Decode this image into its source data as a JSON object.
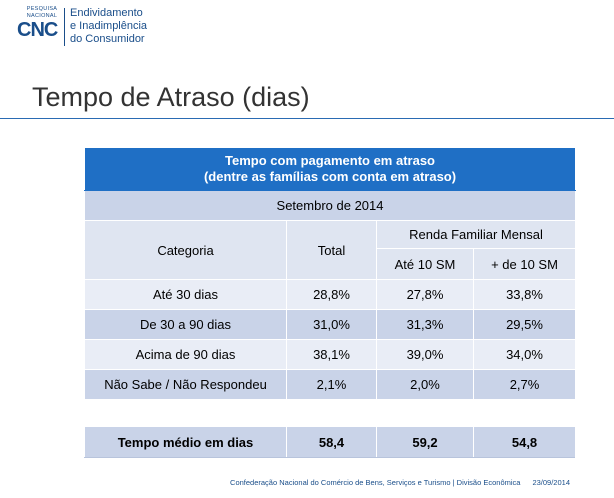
{
  "logo": {
    "small_line1": "PESQUISA",
    "small_line2": "NACIONAL",
    "acronym": "CNC",
    "line1": "Endividamento",
    "line2": "e Inadimplência",
    "line3": "do Consumidor"
  },
  "slide_title": "Tempo de Atraso (dias)",
  "table": {
    "header_line1": "Tempo com pagamento em atraso",
    "header_line2": "(dentre as famílias com conta em atraso)",
    "period": "Setembro de 2014",
    "col_categoria": "Categoria",
    "col_total": "Total",
    "col_renda": "Renda Familiar Mensal",
    "col_ate10": "Até 10 SM",
    "col_mais10": "+ de 10 SM",
    "rows": [
      {
        "categoria": "Até 30 dias",
        "total": "28,8%",
        "ate10": "27,8%",
        "mais10": "33,8%"
      },
      {
        "categoria": "De 30 a 90 dias",
        "total": "31,0%",
        "ate10": "31,3%",
        "mais10": "29,5%"
      },
      {
        "categoria": "Acima de 90 dias",
        "total": "38,1%",
        "ate10": "39,0%",
        "mais10": "34,0%"
      },
      {
        "categoria": "Não Sabe / Não Respondeu",
        "total": "2,1%",
        "ate10": "2,0%",
        "mais10": "2,7%"
      }
    ],
    "summary": {
      "label": "Tempo médio em dias",
      "total": "58,4",
      "ate10": "59,2",
      "mais10": "54,8"
    }
  },
  "footer": {
    "org": "Confederação Nacional do Comércio de Bens, Serviços e Turismo | Divisão Econômica",
    "date": "23/09/2014"
  }
}
